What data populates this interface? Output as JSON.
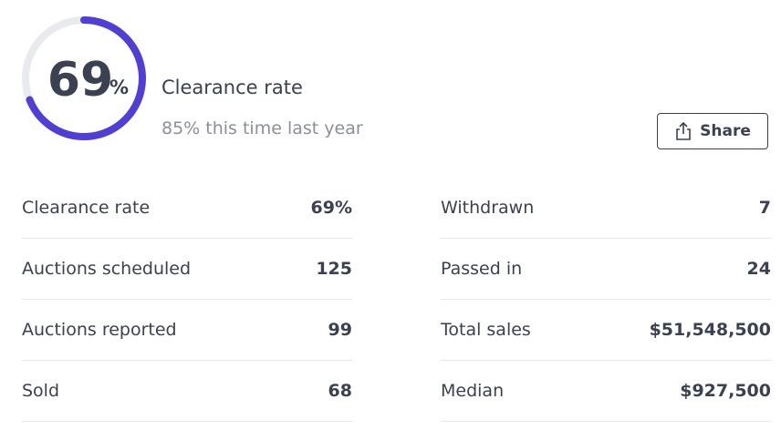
{
  "gauge": {
    "value": 69,
    "unit": "%"
  },
  "header": {
    "title": "Clearance rate",
    "subtitle": "85% this time last year",
    "share": "Share"
  },
  "table": {
    "left": [
      [
        "Clearance rate",
        "69%"
      ],
      [
        "Auctions scheduled",
        "125"
      ],
      [
        "Auctions reported",
        "99"
      ],
      [
        "Sold",
        "68"
      ]
    ],
    "right": [
      [
        "Withdrawn",
        "7"
      ],
      [
        "Passed in",
        "24"
      ],
      [
        "Total sales",
        "$51,548,500"
      ],
      [
        "Median",
        "$927,500"
      ]
    ]
  }
}
